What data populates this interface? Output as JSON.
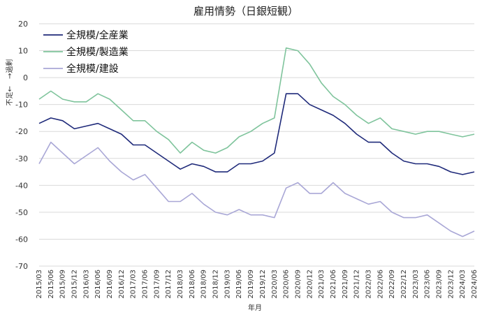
{
  "chart_data": {
    "type": "line",
    "title": "雇用情勢（日銀短観）",
    "xlabel": "年月",
    "ylabel": "不足←　→過剰",
    "ylim": [
      -70,
      20
    ],
    "yticks": [
      20,
      10,
      0,
      -10,
      -20,
      -30,
      -40,
      -50,
      -60,
      -70
    ],
    "grid": true,
    "legend_position": "top-left",
    "categories": [
      "2015/03",
      "2015/06",
      "2015/09",
      "2015/12",
      "2016/03",
      "2016/06",
      "2016/09",
      "2016/12",
      "2017/03",
      "2017/06",
      "2017/09",
      "2017/12",
      "2018/03",
      "2018/06",
      "2018/09",
      "2018/12",
      "2019/03",
      "2019/06",
      "2019/09",
      "2019/12",
      "2020/03",
      "2020/06",
      "2020/09",
      "2020/12",
      "2021/03",
      "2021/06",
      "2021/09",
      "2021/12",
      "2022/03",
      "2022/06",
      "2022/09",
      "2022/12",
      "2023/03",
      "2023/06",
      "2023/09",
      "2023/12",
      "2024/03",
      "2024/06"
    ],
    "series": [
      {
        "name": "全規模/全産業",
        "color": "#1f2a7a",
        "values": [
          -17,
          -15,
          -16,
          -19,
          -18,
          -17,
          -19,
          -21,
          -25,
          -25,
          -28,
          -31,
          -34,
          -32,
          -33,
          -35,
          -35,
          -32,
          -32,
          -31,
          -28,
          -6,
          -6,
          -10,
          -12,
          -14,
          -17,
          -21,
          -24,
          -24,
          -28,
          -31,
          -32,
          -32,
          -33,
          -35,
          -36,
          -35
        ]
      },
      {
        "name": "全規模/製造業",
        "color": "#7fc49c",
        "values": [
          -8,
          -5,
          -8,
          -9,
          -9,
          -6,
          -8,
          -12,
          -16,
          -16,
          -20,
          -23,
          -28,
          -24,
          -27,
          -28,
          -26,
          -22,
          -20,
          -17,
          -15,
          11,
          10,
          5,
          -2,
          -7,
          -10,
          -14,
          -17,
          -15,
          -19,
          -20,
          -21,
          -20,
          -20,
          -21,
          -22,
          -21
        ]
      },
      {
        "name": "全規模/建設",
        "color": "#a9a7d6",
        "values": [
          -32,
          -24,
          -28,
          -32,
          -29,
          -26,
          -31,
          -35,
          -38,
          -36,
          -41,
          -46,
          -46,
          -43,
          -47,
          -50,
          -51,
          -49,
          -51,
          -51,
          -52,
          -41,
          -39,
          -43,
          -43,
          -39,
          -43,
          -45,
          -47,
          -46,
          -50,
          -52,
          -52,
          -51,
          -54,
          -57,
          -59,
          -57
        ]
      }
    ]
  }
}
